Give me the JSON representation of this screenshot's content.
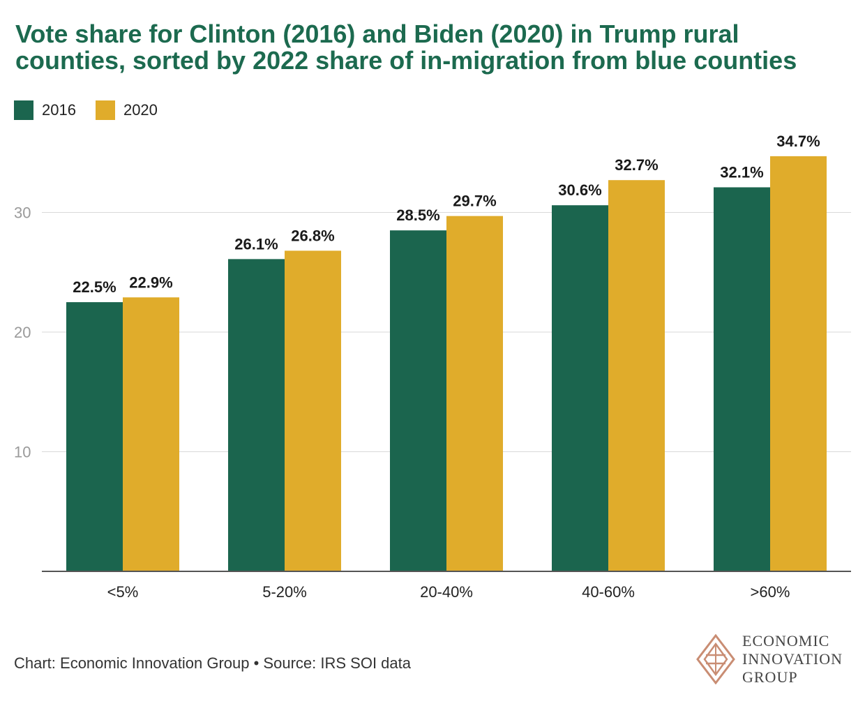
{
  "title_lines": [
    "Vote share for Clinton (2016) and Biden (2020) in Trump rural",
    "counties, sorted by 2022 share of in-migration from blue counties"
  ],
  "footer": "Chart: Economic Innovation Group • Source: IRS SOI data",
  "logo_lines": [
    "ECONOMIC",
    "INNOVATION",
    "GROUP"
  ],
  "colors": {
    "series_2016": "#1b654e",
    "series_2020": "#e0ac2b",
    "title": "#1c6a4f",
    "grid": "#d9d9d9",
    "axis": "#555555",
    "logo": "#c98d73"
  },
  "chart_data": {
    "type": "bar",
    "categories": [
      "<5%",
      "5-20%",
      "20-40%",
      "40-60%",
      ">60%"
    ],
    "series": [
      {
        "name": "2016",
        "values": [
          22.5,
          26.1,
          28.5,
          30.6,
          32.1
        ],
        "labels": [
          "22.5%",
          "26.1%",
          "28.5%",
          "30.6%",
          "32.1%"
        ]
      },
      {
        "name": "2020",
        "values": [
          22.9,
          26.8,
          29.7,
          32.7,
          34.7
        ],
        "labels": [
          "22.9%",
          "26.8%",
          "29.7%",
          "32.7%",
          "34.7%"
        ]
      }
    ],
    "yticks": [
      10,
      20,
      30
    ],
    "ylim": [
      0,
      37
    ],
    "grid": true,
    "legend_position": "top-left"
  }
}
